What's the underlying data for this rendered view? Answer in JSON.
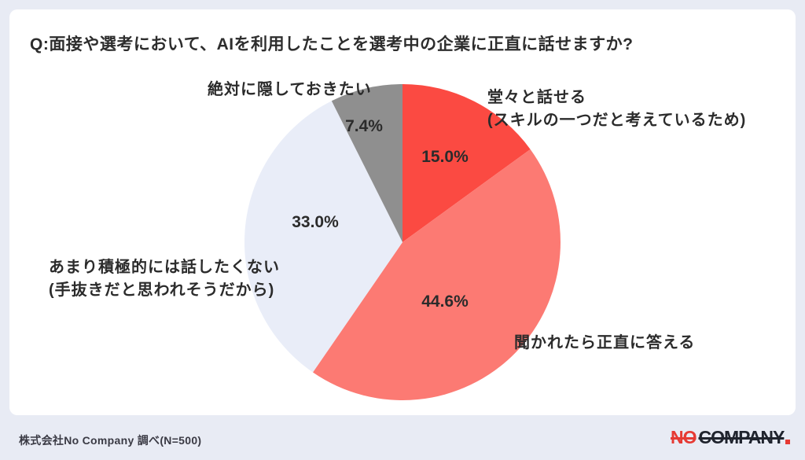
{
  "page": {
    "title": "Q:面接や選考において、AIを利用したことを選考中の企業に正直に話せますか?",
    "source_note": "株式会社No Company 調べ(N=500)",
    "logo": {
      "part1": "NO",
      "part2": "COMPANY",
      "accent_color": "#e63a34",
      "text_color": "#20242e"
    }
  },
  "chart_data": {
    "type": "pie",
    "title": "Q:面接や選考において、AIを利用したことを選考中の企業に正直に話せますか?",
    "start_angle_deg": 0,
    "direction": "clockwise",
    "sample_size_label": "N=500",
    "slices": [
      {
        "label": "堂々と話せる(スキルの一つだと考えているため)",
        "display_label": "堂々と話せる\n(スキルの一つだと考えているため)",
        "value": 15.0,
        "pct_label": "15.0%",
        "color": "#fb4a42"
      },
      {
        "label": "聞かれたら正直に答える",
        "display_label": "聞かれたら正直に答える",
        "value": 44.6,
        "pct_label": "44.6%",
        "color": "#fc7a73"
      },
      {
        "label": "あまり積極的には話したくない(手抜きだと思われそうだから)",
        "display_label": "あまり積極的には話したくない\n(手抜きだと思われそうだから)",
        "value": 33.0,
        "pct_label": "33.0%",
        "color": "#e9edf8"
      },
      {
        "label": "絶対に隠しておきたい",
        "display_label": "絶対に隠しておきたい",
        "value": 7.4,
        "pct_label": "7.4%",
        "color": "#8f8f8f"
      }
    ]
  }
}
